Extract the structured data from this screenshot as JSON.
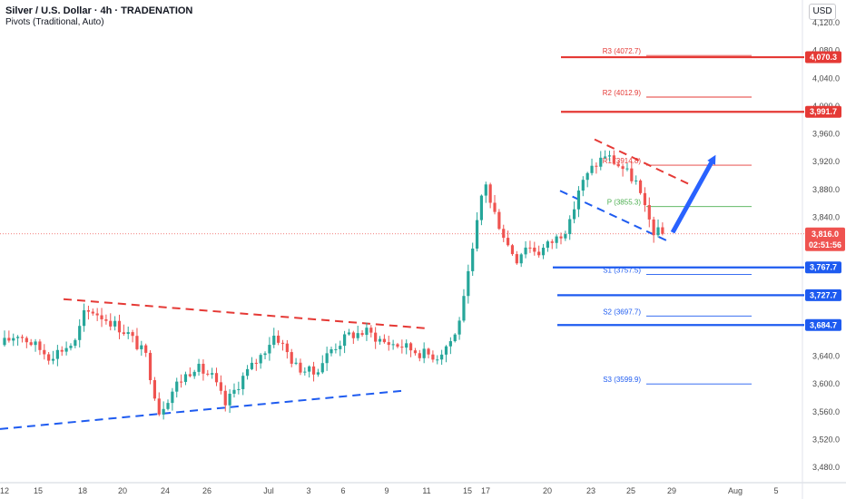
{
  "header": {
    "title": "Silver / U.S. Dollar · 4h · TRADENATION",
    "subtitle": "Pivots (Traditional, Auto)"
  },
  "currency_button": "USD",
  "colors": {
    "up": "#26a69a",
    "down": "#ef5350",
    "resistance": "#e53935",
    "support": "#1e5bf0",
    "pivot": "#4caf50",
    "price_line": "#ef5350",
    "arrow": "#2962ff"
  },
  "chart_data": {
    "type": "candlestick",
    "ylim": [
      3460,
      4140
    ],
    "y_ticks": [
      {
        "value": 4120,
        "label": "4,120.0"
      },
      {
        "value": 4080,
        "label": "4,080.0"
      },
      {
        "value": 4040,
        "label": "4,040.0"
      },
      {
        "value": 4000,
        "label": "4,000.0"
      },
      {
        "value": 3960,
        "label": "3,960.0"
      },
      {
        "value": 3920,
        "label": "3,920.0"
      },
      {
        "value": 3880,
        "label": "3,880.0"
      },
      {
        "value": 3840,
        "label": "3,840.0"
      },
      {
        "value": 3640,
        "label": "3,640.0"
      },
      {
        "value": 3600,
        "label": "3,600.0"
      },
      {
        "value": 3560,
        "label": "3,560.0"
      },
      {
        "value": 3520,
        "label": "3,520.0"
      },
      {
        "value": 3480,
        "label": "3,480.0"
      }
    ],
    "x_ticks": [
      "12",
      "15",
      "18",
      "20",
      "24",
      "26",
      "Jul",
      "3",
      "6",
      "9",
      "11",
      "15",
      "17",
      "20",
      "23",
      "25",
      "29",
      "Aug",
      "5"
    ],
    "pivots": [
      {
        "name": "R3",
        "value": 4072.7,
        "label": "R3 (4072.7)",
        "kind": "resistance"
      },
      {
        "name": "R2",
        "value": 4012.9,
        "label": "R2 (4012.9)",
        "kind": "resistance"
      },
      {
        "name": "R1",
        "value": 3914.8,
        "label": "R1 (3914.8)",
        "kind": "resistance"
      },
      {
        "name": "P",
        "value": 3855.3,
        "label": "P (3855.3)",
        "kind": "pivot"
      },
      {
        "name": "S1",
        "value": 3757.5,
        "label": "S1 (3757.5)",
        "kind": "support"
      },
      {
        "name": "S2",
        "value": 3697.7,
        "label": "S2 (3697.7)",
        "kind": "support"
      },
      {
        "name": "S3",
        "value": 3599.9,
        "label": "S3 (3599.9)",
        "kind": "support"
      }
    ],
    "key_levels": [
      {
        "value": 4070.3,
        "label": "4,070.3",
        "kind": "resistance"
      },
      {
        "value": 3991.7,
        "label": "3,991.7",
        "kind": "resistance"
      },
      {
        "value": 3767.7,
        "label": "3,767.7",
        "kind": "support"
      },
      {
        "value": 3727.7,
        "label": "3,727.7",
        "kind": "support"
      },
      {
        "value": 3684.7,
        "label": "3,684.7",
        "kind": "support"
      }
    ],
    "current_price": {
      "value": 3816.0,
      "label": "3,816.0",
      "countdown": "02:51:56"
    },
    "close_path": [
      [
        0,
        3660
      ],
      [
        3,
        3672
      ],
      [
        7,
        3655
      ],
      [
        10,
        3640
      ],
      [
        13,
        3650
      ],
      [
        16,
        3660
      ],
      [
        18,
        3700
      ],
      [
        20,
        3705
      ],
      [
        24,
        3690
      ],
      [
        28,
        3672
      ],
      [
        32,
        3640
      ],
      [
        35,
        3560
      ],
      [
        39,
        3600
      ],
      [
        43,
        3625
      ],
      [
        47,
        3610
      ],
      [
        50,
        3570
      ],
      [
        54,
        3610
      ],
      [
        58,
        3640
      ],
      [
        61,
        3670
      ],
      [
        62,
        3665
      ],
      [
        66,
        3625
      ],
      [
        70,
        3615
      ],
      [
        74,
        3650
      ],
      [
        78,
        3670
      ],
      [
        82,
        3675
      ],
      [
        86,
        3660
      ],
      [
        90,
        3655
      ],
      [
        94,
        3645
      ],
      [
        98,
        3640
      ],
      [
        102,
        3670
      ],
      [
        104,
        3720
      ],
      [
        106,
        3790
      ],
      [
        108,
        3870
      ],
      [
        109,
        3890
      ],
      [
        110,
        3860
      ],
      [
        112,
        3830
      ],
      [
        114,
        3800
      ],
      [
        116,
        3780
      ],
      [
        118,
        3800
      ],
      [
        121,
        3790
      ],
      [
        125,
        3810
      ],
      [
        128,
        3830
      ],
      [
        130,
        3880
      ],
      [
        133,
        3910
      ],
      [
        136,
        3930
      ],
      [
        138,
        3920
      ],
      [
        140,
        3910
      ],
      [
        143,
        3890
      ],
      [
        144,
        3870
      ],
      [
        145,
        3850
      ],
      [
        147,
        3820
      ],
      [
        149,
        3816
      ]
    ],
    "trendlines": [
      {
        "name": "upper-resistance-old",
        "points": [
          [
            "Jun 17",
            3722
          ],
          [
            "Jul 10",
            3680
          ]
        ],
        "style": "dashed",
        "kind": "resistance"
      },
      {
        "name": "lower-support-old",
        "points": [
          [
            "Jun 12",
            3535
          ],
          [
            "Jul 10",
            3590
          ]
        ],
        "style": "dashed",
        "kind": "support"
      },
      {
        "name": "flag-top",
        "points": [
          [
            "Jul 23",
            3952
          ],
          [
            "Jul 28",
            3887
          ]
        ],
        "style": "dashed",
        "kind": "resistance"
      },
      {
        "name": "flag-bottom",
        "points": [
          [
            "Jul 21",
            3878
          ],
          [
            "Jul 28",
            3806
          ]
        ],
        "style": "dashed",
        "kind": "support"
      }
    ],
    "projection": {
      "from": 3818,
      "to": 3924,
      "direction": "up"
    }
  }
}
